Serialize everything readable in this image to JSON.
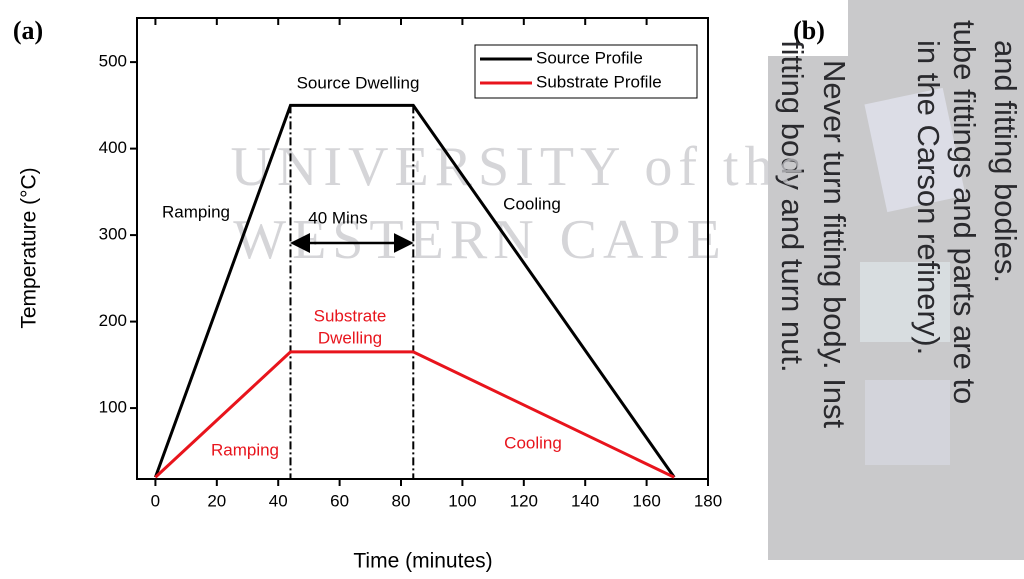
{
  "chart_data": {
    "type": "line",
    "panel_label": "(a)",
    "x_label": "Time (minutes)",
    "y_label": "Temperature (°C)",
    "x": [
      0,
      44,
      84,
      169
    ],
    "series": [
      {
        "name": "Source Profile",
        "color": "#000000",
        "values": [
          20,
          450,
          450,
          20
        ]
      },
      {
        "name": "Substrate Profile",
        "color": "#e8141c",
        "values": [
          20,
          165,
          165,
          20
        ]
      }
    ],
    "xlim": [
      -6,
      180
    ],
    "xticks": [
      0,
      20,
      40,
      60,
      80,
      100,
      120,
      140,
      160,
      180
    ],
    "ylim": [
      18,
      551
    ],
    "yticks": [
      100,
      200,
      300,
      400,
      500
    ],
    "legend": "top-right",
    "annotations": [
      {
        "text": [
          "Source Dwelling"
        ],
        "color": "#000000"
      },
      {
        "text": [
          "Ramping"
        ],
        "color": "#000000"
      },
      {
        "text": [
          "40 Mins"
        ],
        "color": "#000000"
      },
      {
        "text": [
          "Cooling"
        ],
        "color": "#000000"
      },
      {
        "text": [
          "Substrate",
          "Dwelling"
        ],
        "color": "#e8141c"
      },
      {
        "text": [
          "Ramping"
        ],
        "color": "#e8141c"
      },
      {
        "text": [
          "Cooling"
        ],
        "color": "#e8141c"
      }
    ]
  },
  "watermark": [
    "UNIVERSITY of the",
    "WESTERN CAPE"
  ],
  "photo": {
    "panel_label": "(b)",
    "text_lines": [
      "and fitting bodies.",
      "tube fittings and parts are to",
      "in the Carson refinery).",
      "Never turn fitting body. Inst",
      "fitting body and turn nut."
    ]
  }
}
